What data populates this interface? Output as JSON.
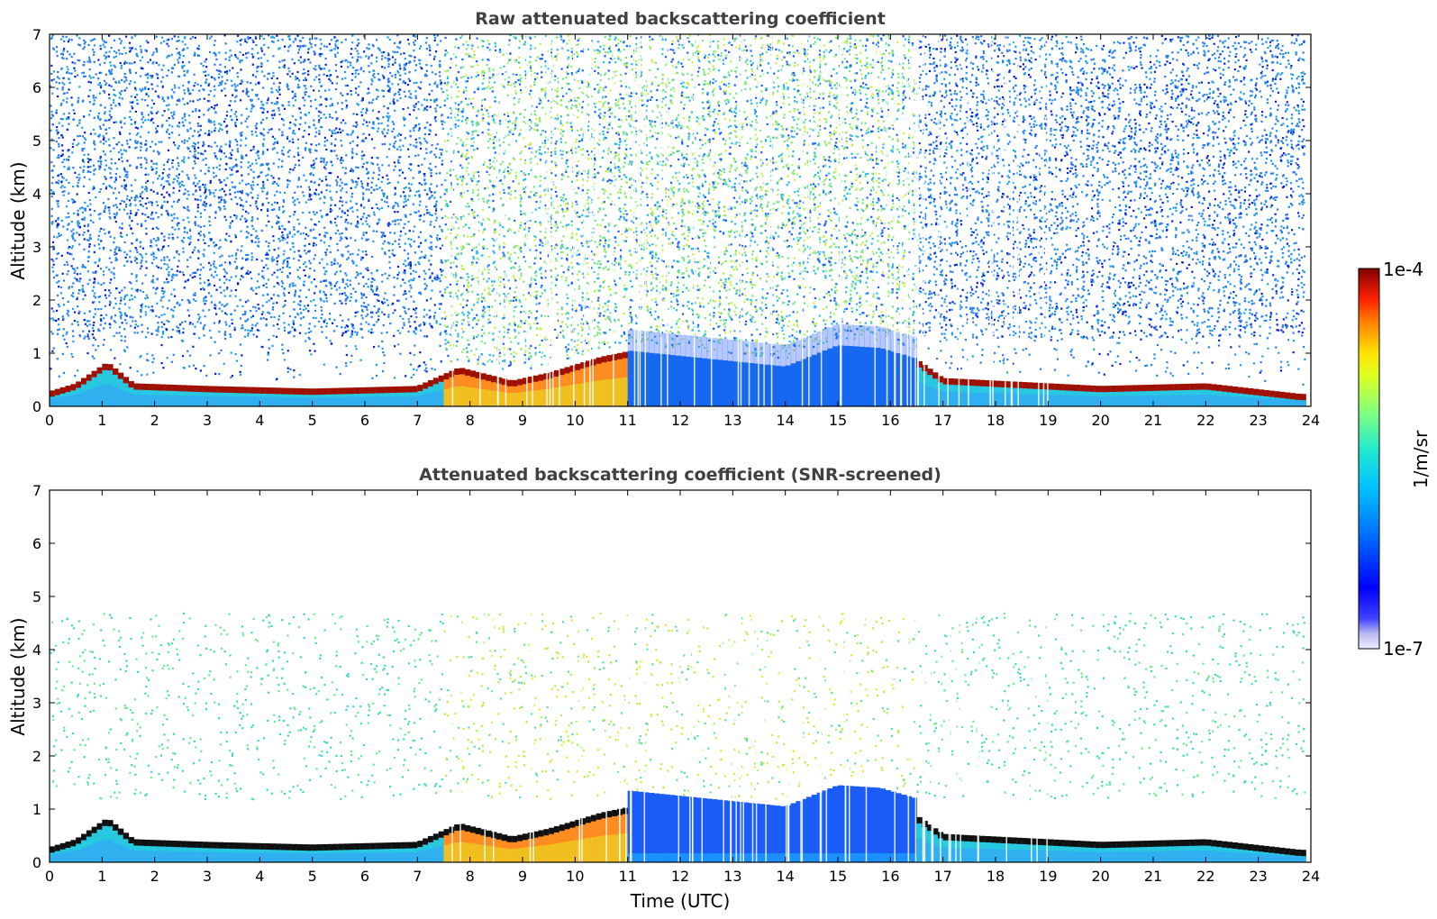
{
  "chart_data": [
    {
      "type": "heatmap",
      "title": "Raw attenuated backscattering coefficient",
      "xlabel": "",
      "ylabel": "Altitude (km)",
      "xlim": [
        0,
        24
      ],
      "ylim": [
        0,
        7
      ],
      "xticks": [
        "0",
        "1",
        "2",
        "3",
        "4",
        "5",
        "6",
        "7",
        "8",
        "9",
        "10",
        "11",
        "12",
        "13",
        "14",
        "15",
        "16",
        "17",
        "18",
        "19",
        "20",
        "21",
        "22",
        "23",
        "24"
      ],
      "yticks": [
        "0",
        "1",
        "2",
        "3",
        "4",
        "5",
        "6",
        "7"
      ],
      "boundary_layer_top_km": [
        {
          "time": 0,
          "alt": 0.25
        },
        {
          "time": 0.5,
          "alt": 0.4
        },
        {
          "time": 1.1,
          "alt": 0.8
        },
        {
          "time": 1.6,
          "alt": 0.4
        },
        {
          "time": 3,
          "alt": 0.35
        },
        {
          "time": 5,
          "alt": 0.3
        },
        {
          "time": 7,
          "alt": 0.35
        },
        {
          "time": 7.8,
          "alt": 0.7
        },
        {
          "time": 8.8,
          "alt": 0.45
        },
        {
          "time": 9.5,
          "alt": 0.6
        },
        {
          "time": 10.5,
          "alt": 0.9
        },
        {
          "time": 11,
          "alt": 1.0
        },
        {
          "time": 14,
          "alt": 0.7
        },
        {
          "time": 15,
          "alt": 1.1
        },
        {
          "time": 15.8,
          "alt": 1.05
        },
        {
          "time": 16.5,
          "alt": 0.85
        },
        {
          "time": 17,
          "alt": 0.5
        },
        {
          "time": 20,
          "alt": 0.35
        },
        {
          "time": 22,
          "alt": 0.4
        },
        {
          "time": 23.8,
          "alt": 0.2
        }
      ]
    },
    {
      "type": "heatmap",
      "title": "Attenuated backscattering coefficient (SNR-screened)",
      "xlabel": "Time (UTC)",
      "ylabel": "Altitude (km)",
      "xlim": [
        0,
        24
      ],
      "ylim": [
        0,
        7
      ],
      "xticks": [
        "0",
        "1",
        "2",
        "3",
        "4",
        "5",
        "6",
        "7",
        "8",
        "9",
        "10",
        "11",
        "12",
        "13",
        "14",
        "15",
        "16",
        "17",
        "18",
        "19",
        "20",
        "21",
        "22",
        "23",
        "24"
      ],
      "yticks": [
        "0",
        "1",
        "2",
        "3",
        "4",
        "5",
        "6",
        "7"
      ]
    }
  ],
  "colorbar": {
    "label": "1/m/sr",
    "max_label": "1e-4",
    "min_label": "1e-7",
    "scale": "log",
    "colormap": [
      "#0d0c6e",
      "#0000ff",
      "#0080ff",
      "#00e0ff",
      "#40ffc0",
      "#c0ff40",
      "#ffff00",
      "#ff8000",
      "#ff0000",
      "#800000"
    ]
  }
}
